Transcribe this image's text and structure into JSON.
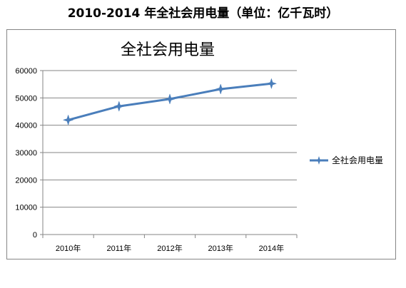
{
  "page_title": "2010-2014 年全社会用电量（单位：亿千瓦时）",
  "chart_data": {
    "type": "line",
    "title": "全社会用电量",
    "xlabel": "",
    "ylabel": "",
    "categories": [
      "2010年",
      "2011年",
      "2012年",
      "2013年",
      "2014年"
    ],
    "series": [
      {
        "name": "全社会用电量",
        "values": [
          41923,
          46928,
          49591,
          53223,
          55233
        ],
        "color": "#4A7EBB",
        "marker": "star4"
      }
    ],
    "ylim": [
      0,
      60000
    ],
    "yticks": [
      0,
      10000,
      20000,
      30000,
      40000,
      50000,
      60000
    ],
    "grid": true,
    "legend_position": "right"
  }
}
